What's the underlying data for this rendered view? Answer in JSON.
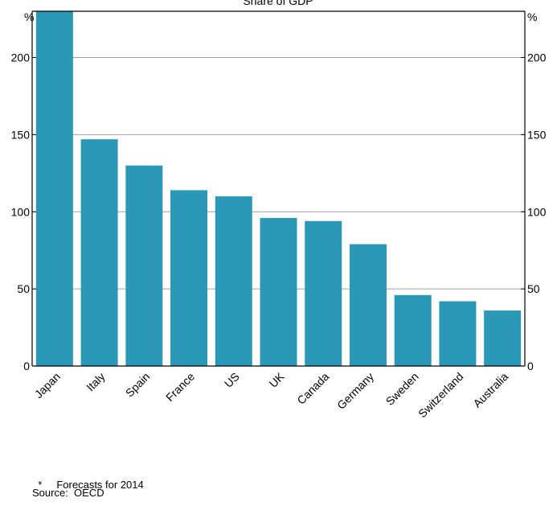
{
  "chart_data": {
    "type": "bar",
    "title": "Share of GDP",
    "y_unit_left": "%",
    "y_unit_right": "%",
    "ylim": [
      0,
      230
    ],
    "yticks": [
      0,
      50,
      100,
      150,
      200
    ],
    "grid": true,
    "bar_color": "#2a98b6",
    "categories": [
      "Japan",
      "Italy",
      "Spain",
      "France",
      "US",
      "UK",
      "Canada",
      "Germany",
      "Sweden",
      "Switzerland",
      "Australia"
    ],
    "values": [
      230,
      147,
      130,
      114,
      110,
      96,
      94,
      79,
      46,
      42,
      36
    ]
  },
  "footnotes": {
    "asterisk": "*",
    "forecast": "Forecasts for 2014",
    "source": "Source:  OECD"
  }
}
